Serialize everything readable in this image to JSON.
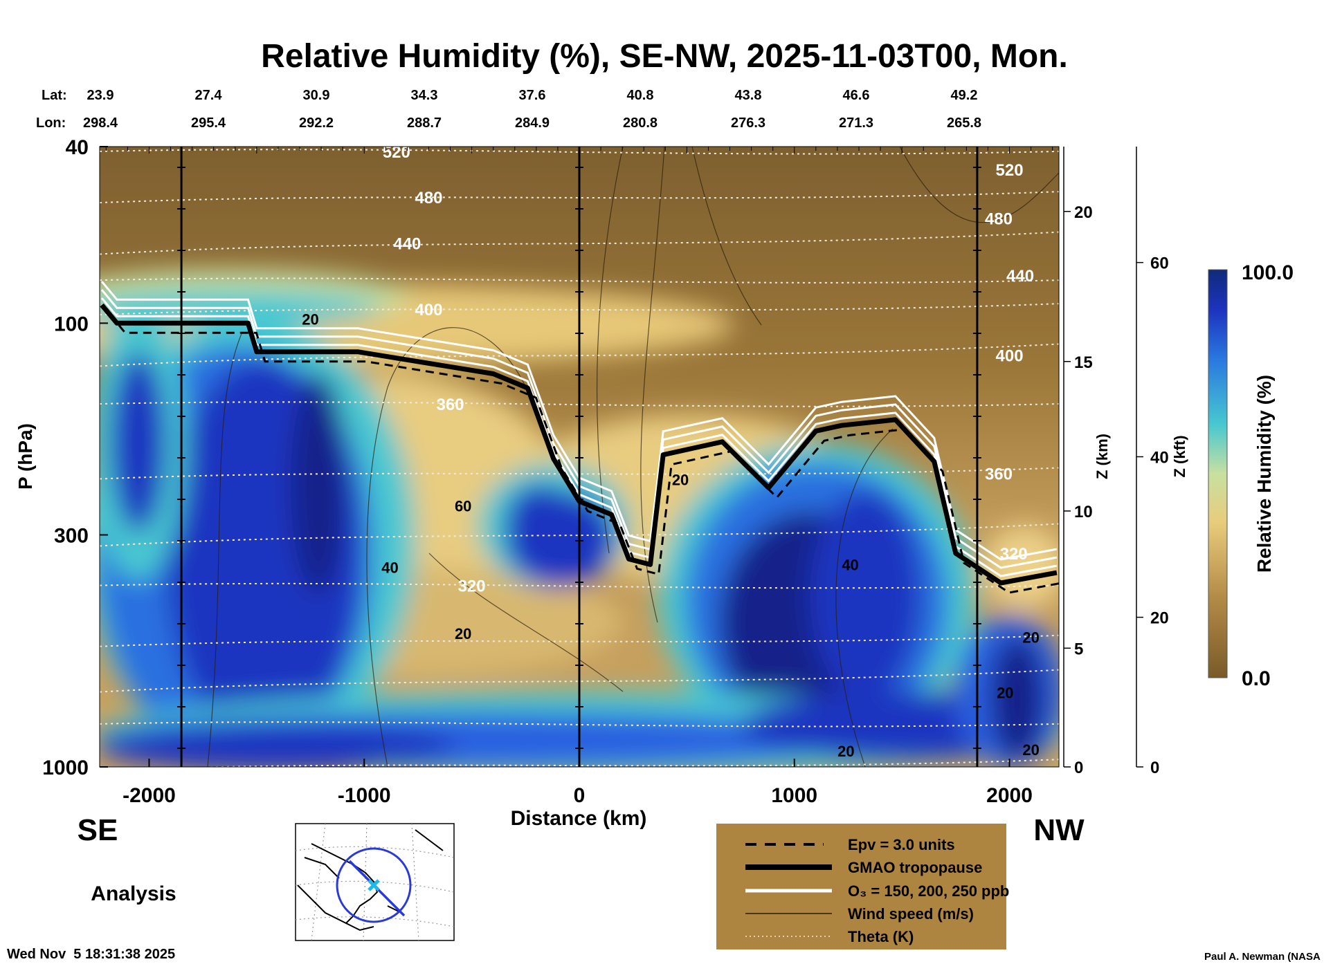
{
  "chart_data": {
    "type": "heatmap",
    "title": "Relative Humidity (%), SE-NW, 2025-11-03T00, Mon.",
    "xlabel": "Distance (km)",
    "ylabel": "P (hPa)",
    "y2label": "Z (km)",
    "y3label": "Z (kft)",
    "xlim": [
      -2230,
      2230
    ],
    "ylim": [
      1000,
      40
    ],
    "x_ticks": [
      -2000,
      -1000,
      0,
      1000,
      2000
    ],
    "x_tick_labels": [
      "-2000",
      "-1000",
      "0",
      "1000",
      "2000"
    ],
    "y_ticks": [
      40,
      100,
      300,
      1000
    ],
    "y_tick_labels": [
      "40",
      "100",
      "300",
      "1000"
    ],
    "zkm_ticks": [
      {
        "z": 0,
        "p": 1000,
        "label": "0"
      },
      {
        "z": 5,
        "p": 540,
        "label": "5"
      },
      {
        "z": 10,
        "p": 265,
        "label": "10"
      },
      {
        "z": 15,
        "p": 122,
        "label": "15"
      },
      {
        "z": 20,
        "p": 56,
        "label": "20"
      }
    ],
    "zkft_ticks": [
      {
        "p": 1000,
        "label": "0"
      },
      {
        "p": 460,
        "label": "20"
      },
      {
        "p": 200,
        "label": "40"
      },
      {
        "p": 73,
        "label": "60"
      }
    ],
    "lat_label": "Lat:",
    "lon_label": "Lon:",
    "lat": [
      "23.9",
      "27.4",
      "30.9",
      "34.3",
      "37.6",
      "40.8",
      "43.8",
      "46.6",
      "49.2"
    ],
    "lon": [
      "298.4",
      "295.4",
      "292.2",
      "288.7",
      "284.9",
      "280.8",
      "276.3",
      "271.3",
      "265.8"
    ],
    "latlon_x": [
      -2000,
      -1500,
      -1000,
      -500,
      0,
      500,
      1000,
      1500,
      2000
    ],
    "vertical_lines_km": [
      -1850,
      0,
      1850
    ],
    "colorbar": {
      "label": "Relative Humidity (%)",
      "min_label": "0.0",
      "max_label": "100.0",
      "min": 0,
      "max": 100
    },
    "tropopause": {
      "name": "GMAO tropopause",
      "x": [
        -2220,
        -2150,
        -1540,
        -1500,
        -1030,
        -400,
        -240,
        -120,
        0,
        150,
        230,
        330,
        390,
        665,
        880,
        1100,
        1220,
        1470,
        1650,
        1750,
        1960,
        2220
      ],
      "p": [
        91,
        100,
        100,
        116,
        116,
        130,
        140,
        202,
        252,
        270,
        340,
        350,
        198,
        185,
        235,
        175,
        170,
        165,
        205,
        330,
        385,
        365
      ]
    },
    "theta_labels": [
      {
        "text": "520",
        "x": -850,
        "p": 41
      },
      {
        "text": "480",
        "x": -700,
        "p": 52
      },
      {
        "text": "440",
        "x": -800,
        "p": 66
      },
      {
        "text": "400",
        "x": -700,
        "p": 93
      },
      {
        "text": "360",
        "x": -600,
        "p": 152
      },
      {
        "text": "320",
        "x": -500,
        "p": 390
      },
      {
        "text": "520",
        "x": 2000,
        "p": 45
      },
      {
        "text": "480",
        "x": 1950,
        "p": 58
      },
      {
        "text": "440",
        "x": 2050,
        "p": 78
      },
      {
        "text": "400",
        "x": 2000,
        "p": 118
      },
      {
        "text": "360",
        "x": 1950,
        "p": 218
      },
      {
        "text": "320",
        "x": 2020,
        "p": 330
      }
    ],
    "wind_labels": [
      {
        "text": "20",
        "x": -1250,
        "p": 98
      },
      {
        "text": "60",
        "x": -540,
        "p": 258
      },
      {
        "text": "40",
        "x": -880,
        "p": 355
      },
      {
        "text": "20",
        "x": -540,
        "p": 500
      },
      {
        "text": "20",
        "x": 470,
        "p": 225
      },
      {
        "text": "40",
        "x": 1260,
        "p": 350
      },
      {
        "text": "20",
        "x": 2100,
        "p": 510
      },
      {
        "text": "20",
        "x": 1980,
        "p": 680
      },
      {
        "text": "20",
        "x": 1240,
        "p": 920
      },
      {
        "text": "20",
        "x": 2100,
        "p": 915
      }
    ]
  },
  "side_labels": {
    "left": "SE",
    "right": "NW",
    "mode": "Analysis"
  },
  "legend": {
    "items": [
      {
        "label": "Epv = 3.0 units",
        "style": "dashed"
      },
      {
        "label": "GMAO tropopause",
        "style": "thick"
      },
      {
        "label": "O₃ = 150, 200, 250 ppb",
        "style": "white"
      },
      {
        "label": "Wind speed (m/s)",
        "style": "thin"
      },
      {
        "label": "Theta (K)",
        "style": "dotted"
      }
    ]
  },
  "footer": {
    "timestamp": "Wed Nov  5 18:31:38 2025",
    "credit": "Paul A. Newman (NASA"
  },
  "colors": {
    "legend_bg": "#ae8540",
    "path_line": "#2a3ad8",
    "path_marker": "#20b8e8"
  }
}
